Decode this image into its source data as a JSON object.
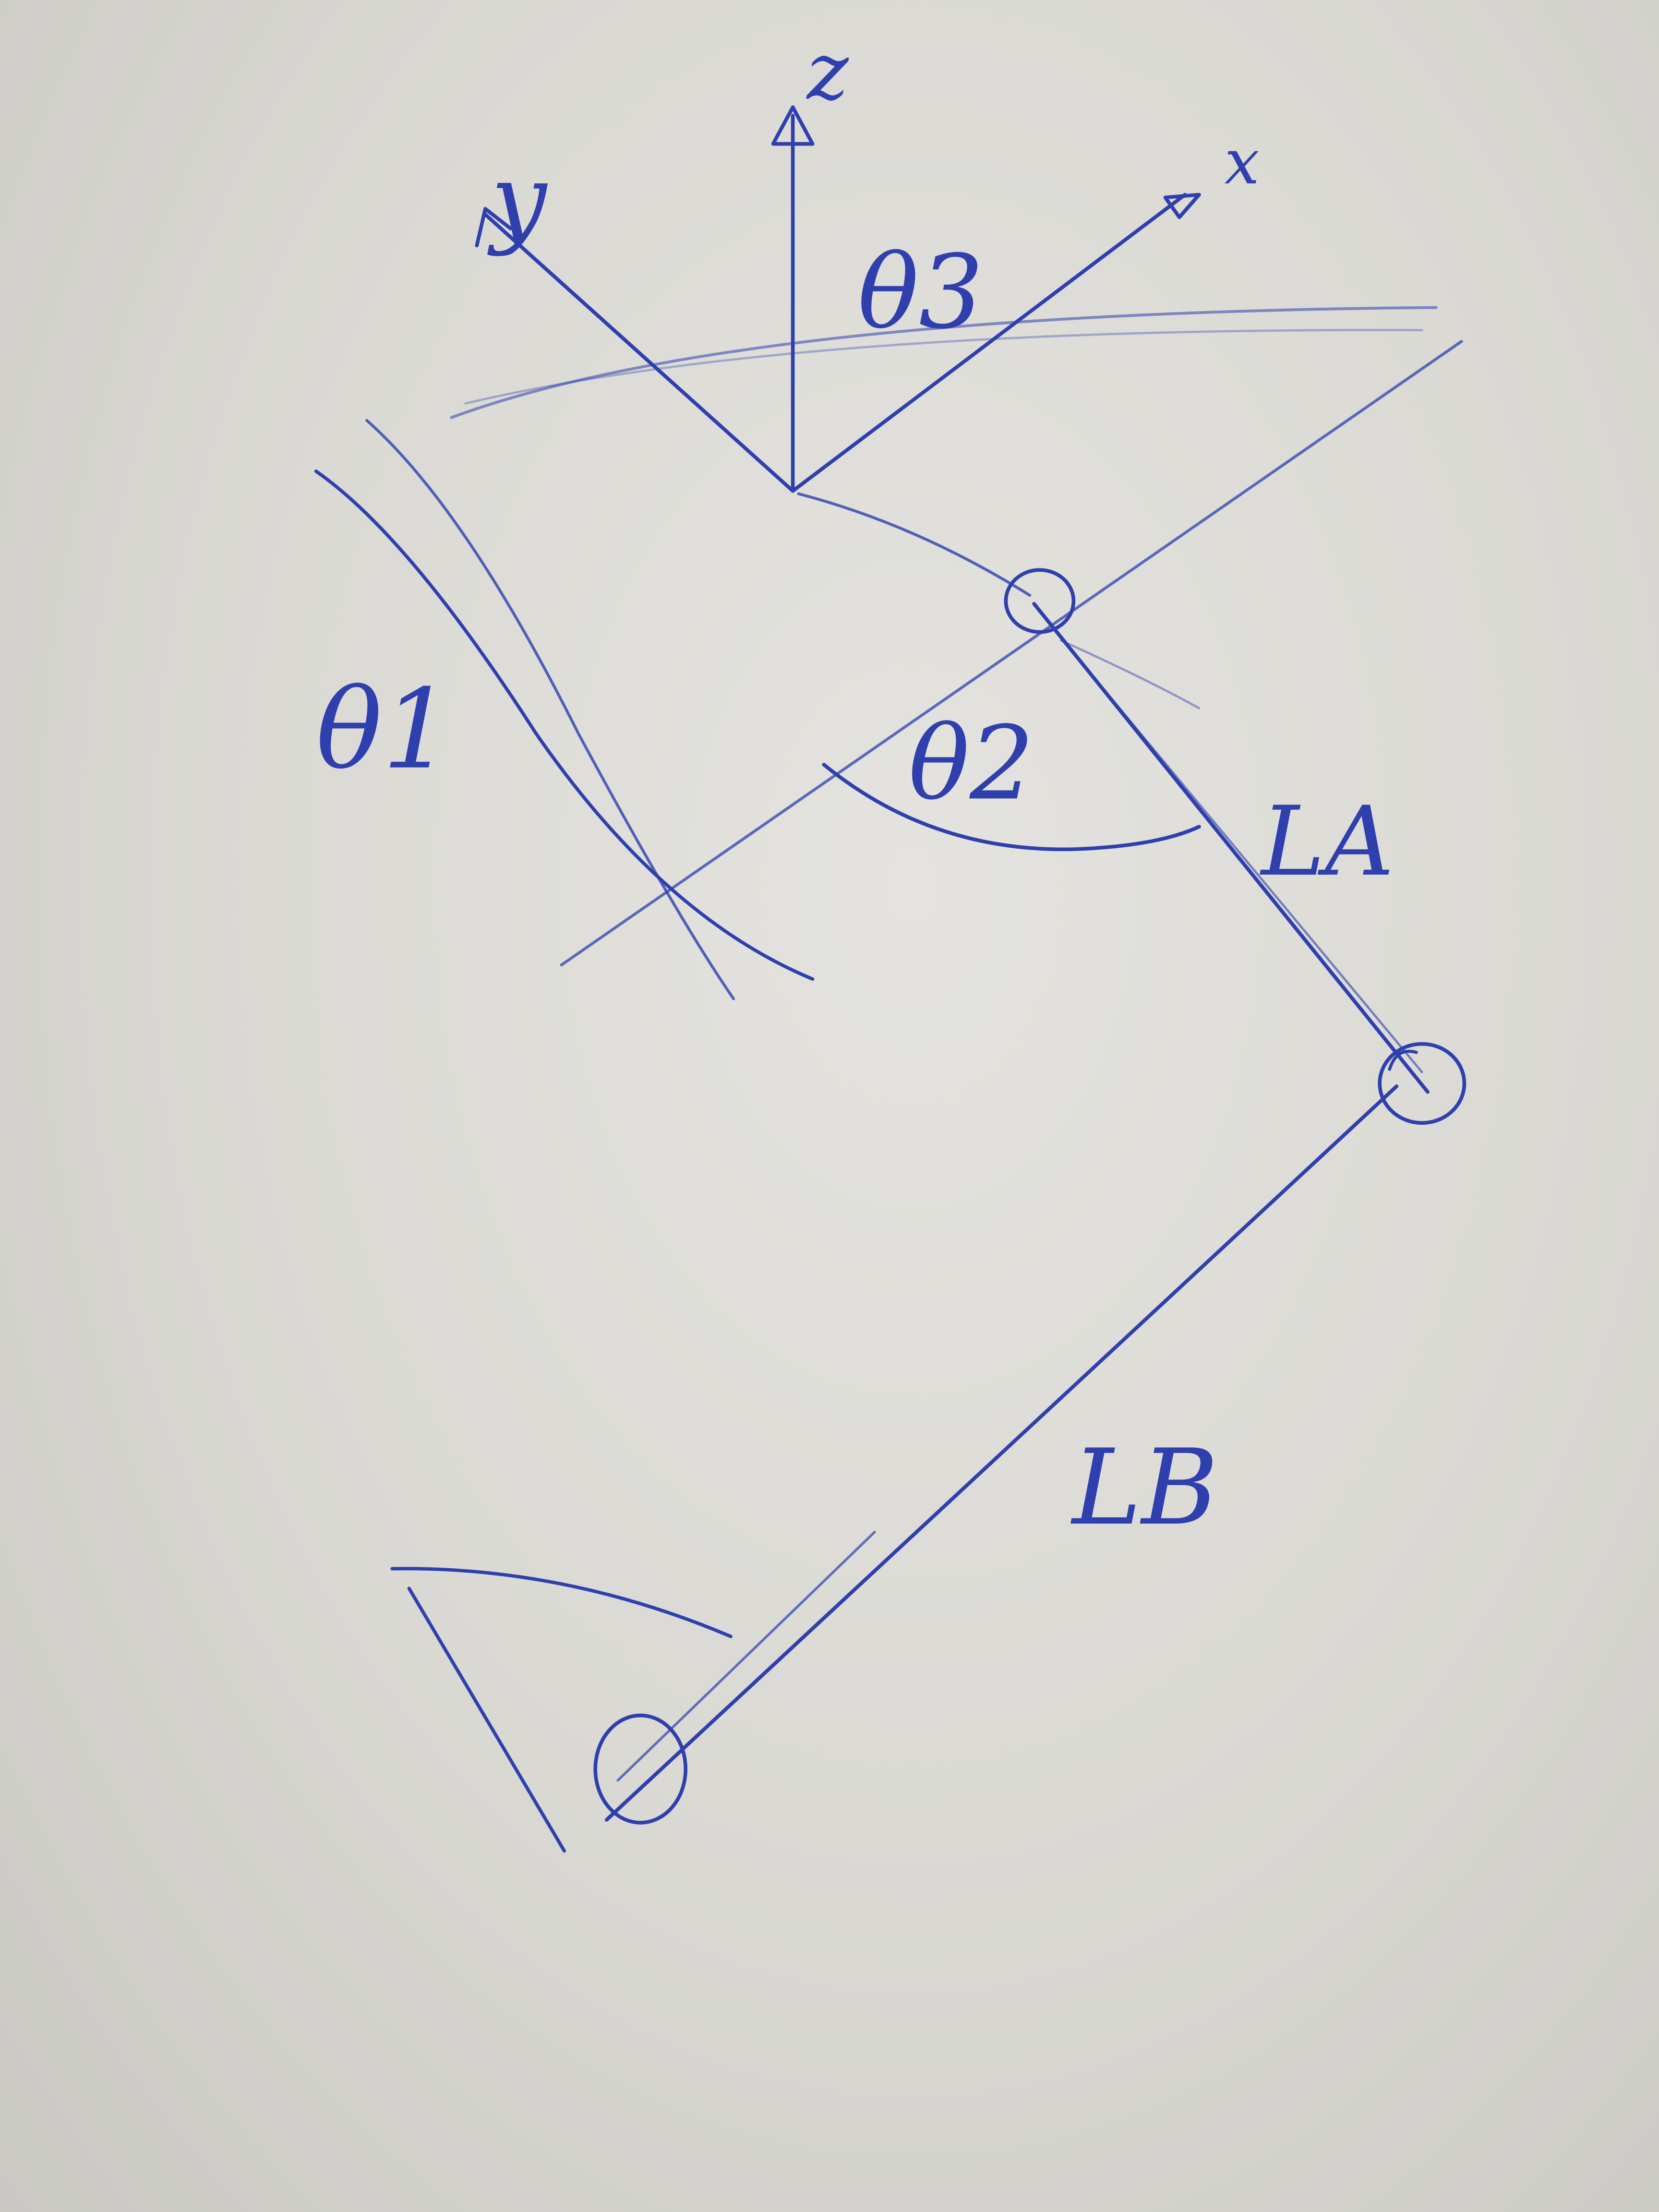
{
  "ink_color": "#2f3fae",
  "labels": {
    "axis_x": "x",
    "axis_y": "y",
    "axis_z": "z",
    "theta_1": "θ1",
    "theta_2": "θ2",
    "theta_3": "θ3",
    "link_a": "LA",
    "link_b": "LB"
  }
}
